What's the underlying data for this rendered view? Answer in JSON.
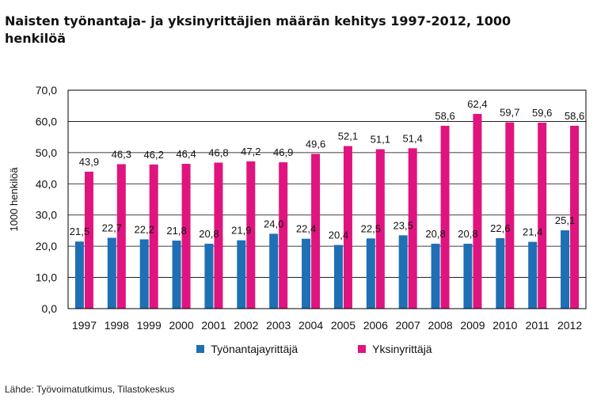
{
  "title": "Naisten työnantaja- ja yksinyrittäjien määrän kehitys 1997-2012, 1000 henkilöä",
  "source": "Lähde: Työvoimatutkimus, Tilastokeskus",
  "colors": {
    "series1": "#1F6FB4",
    "series2": "#E0147F",
    "gridline": "#000000",
    "plot_border": "#000000"
  },
  "chart_data": {
    "type": "bar",
    "title": "Naisten työnantaja- ja yksinyrittäjien määrän kehitys 1997-2012, 1000 henkilöä",
    "xlabel": "",
    "ylabel": "1000 henkilöä",
    "ylim": [
      0,
      70
    ],
    "yticks": [
      "0,0",
      "10,0",
      "20,0",
      "30,0",
      "40,0",
      "50,0",
      "60,0",
      "70,0"
    ],
    "grid": true,
    "legend_position": "bottom",
    "categories": [
      "1997",
      "1998",
      "1999",
      "2000",
      "2001",
      "2002",
      "2003",
      "2004",
      "2005",
      "2006",
      "2007",
      "2008",
      "2009",
      "2010",
      "2011",
      "2012"
    ],
    "series": [
      {
        "name": "Työnantajayrittäjä",
        "values": [
          21.5,
          22.7,
          22.2,
          21.8,
          20.8,
          21.9,
          24.0,
          22.4,
          20.4,
          22.5,
          23.5,
          20.8,
          20.8,
          22.6,
          21.4,
          25.1
        ],
        "labels": [
          "21,5",
          "22,7",
          "22,2",
          "21,8",
          "20,8",
          "21,9",
          "24,0",
          "22,4",
          "20,4",
          "22,5",
          "23,5",
          "20,8",
          "20,8",
          "22,6",
          "21,4",
          "25,1"
        ]
      },
      {
        "name": "Yksinyrittäjä",
        "values": [
          43.9,
          46.3,
          46.2,
          46.4,
          46.8,
          47.2,
          46.9,
          49.6,
          52.1,
          51.1,
          51.4,
          58.6,
          62.4,
          59.7,
          59.6,
          58.6
        ],
        "labels": [
          "43,9",
          "46,3",
          "46,2",
          "46,4",
          "46,8",
          "47,2",
          "46,9",
          "49,6",
          "52,1",
          "51,1",
          "51,4",
          "58,6",
          "62,4",
          "59,7",
          "59,6",
          "58,6"
        ]
      }
    ]
  }
}
